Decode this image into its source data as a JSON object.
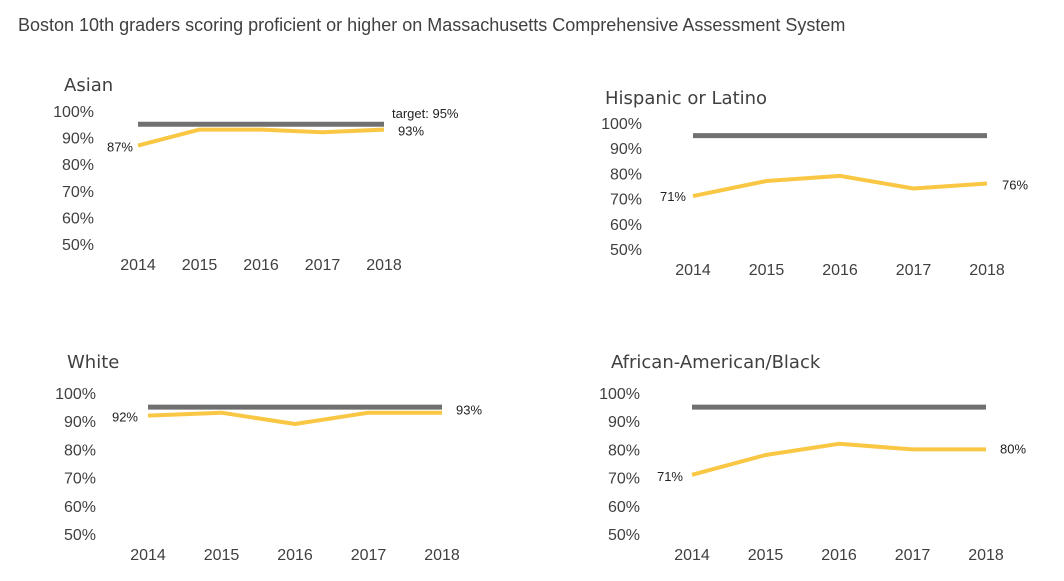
{
  "title": "Boston 10th graders scoring proficient or higher on Massachusetts Comprehensive Assessment System",
  "colors": {
    "target_line": "#707070",
    "series_line": "#F9C744",
    "text": "#404040"
  },
  "chart_data": [
    {
      "type": "line",
      "title": "Asian",
      "x": [
        "2014",
        "2015",
        "2016",
        "2017",
        "2018"
      ],
      "y_ticks": [
        "100%",
        "90%",
        "80%",
        "70%",
        "60%",
        "50%"
      ],
      "ylim": [
        50,
        100
      ],
      "series": [
        {
          "role": "target",
          "values": [
            95,
            95,
            95,
            95,
            95
          ]
        },
        {
          "role": "actual",
          "values": [
            87,
            93,
            93,
            92,
            93
          ]
        }
      ],
      "annotations": {
        "start": "87%",
        "end": "93%",
        "target": "target: 95%"
      }
    },
    {
      "type": "line",
      "title": "Hispanic or Latino",
      "x": [
        "2014",
        "2015",
        "2016",
        "2017",
        "2018"
      ],
      "y_ticks": [
        "100%",
        "90%",
        "80%",
        "70%",
        "60%",
        "50%"
      ],
      "ylim": [
        50,
        100
      ],
      "series": [
        {
          "role": "target",
          "values": [
            95,
            95,
            95,
            95,
            95
          ]
        },
        {
          "role": "actual",
          "values": [
            71,
            77,
            79,
            74,
            76
          ]
        }
      ],
      "annotations": {
        "start": "71%",
        "end": "76%"
      }
    },
    {
      "type": "line",
      "title": "White",
      "x": [
        "2014",
        "2015",
        "2016",
        "2017",
        "2018"
      ],
      "y_ticks": [
        "100%",
        "90%",
        "80%",
        "70%",
        "60%",
        "50%"
      ],
      "ylim": [
        50,
        100
      ],
      "series": [
        {
          "role": "target",
          "values": [
            95,
            95,
            95,
            95,
            95
          ]
        },
        {
          "role": "actual",
          "values": [
            92,
            93,
            89,
            93,
            93
          ]
        }
      ],
      "annotations": {
        "start": "92%",
        "end": "93%"
      }
    },
    {
      "type": "line",
      "title": "African-American/Black",
      "x": [
        "2014",
        "2015",
        "2016",
        "2017",
        "2018"
      ],
      "y_ticks": [
        "100%",
        "90%",
        "80%",
        "70%",
        "60%",
        "50%"
      ],
      "ylim": [
        50,
        100
      ],
      "series": [
        {
          "role": "target",
          "values": [
            95,
            95,
            95,
            95,
            95
          ]
        },
        {
          "role": "actual",
          "values": [
            71,
            78,
            82,
            80,
            80
          ]
        }
      ],
      "annotations": {
        "start": "71%",
        "end": "80%"
      }
    }
  ]
}
